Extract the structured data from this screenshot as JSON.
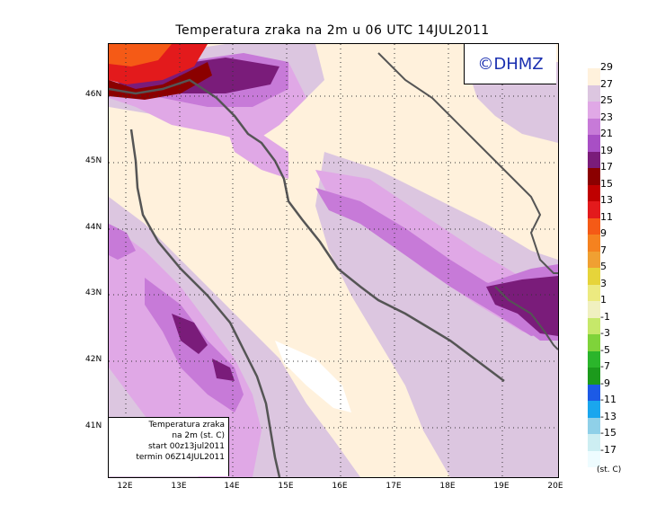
{
  "title": "Temperatura zraka na 2m u 06 UTC 14JUL2011",
  "credit": "©DHMZ",
  "latitude_labels": [
    "46N",
    "45N",
    "44N",
    "43N",
    "42N",
    "41N"
  ],
  "longitude_labels": [
    "12E",
    "13E",
    "14E",
    "15E",
    "16E",
    "17E",
    "18E",
    "19E",
    "20E"
  ],
  "info_box": {
    "line1": "Temperatura zraka",
    "line2": "na 2m (st. C)",
    "line3": "start 00z13jul2011",
    "line4": "termin 06Z14JUL2011"
  },
  "legend": {
    "unit": "(st. C)",
    "labels": [
      "29",
      "27",
      "25",
      "23",
      "21",
      "19",
      "17",
      "15",
      "13",
      "11",
      "9",
      "7",
      "5",
      "3",
      "1",
      "-1",
      "-3",
      "-5",
      "-7",
      "-9",
      "-11",
      "-13",
      "-15",
      "-17"
    ],
    "colors": [
      "#fff1dc",
      "#dcc6e0",
      "#e0a8e6",
      "#c77ad8",
      "#a84fc5",
      "#7a1c7a",
      "#8b0000",
      "#bf0000",
      "#e31a1c",
      "#f55a16",
      "#f5821f",
      "#f0a032",
      "#e6d43a",
      "#ecea80",
      "#f0f0c0",
      "#c6e86a",
      "#7fd33a",
      "#2bb52b",
      "#1c9a1c",
      "#1c5ae6",
      "#1aa6ee",
      "#8fd0e8",
      "#cdeef2",
      "#eefcff"
    ]
  }
}
